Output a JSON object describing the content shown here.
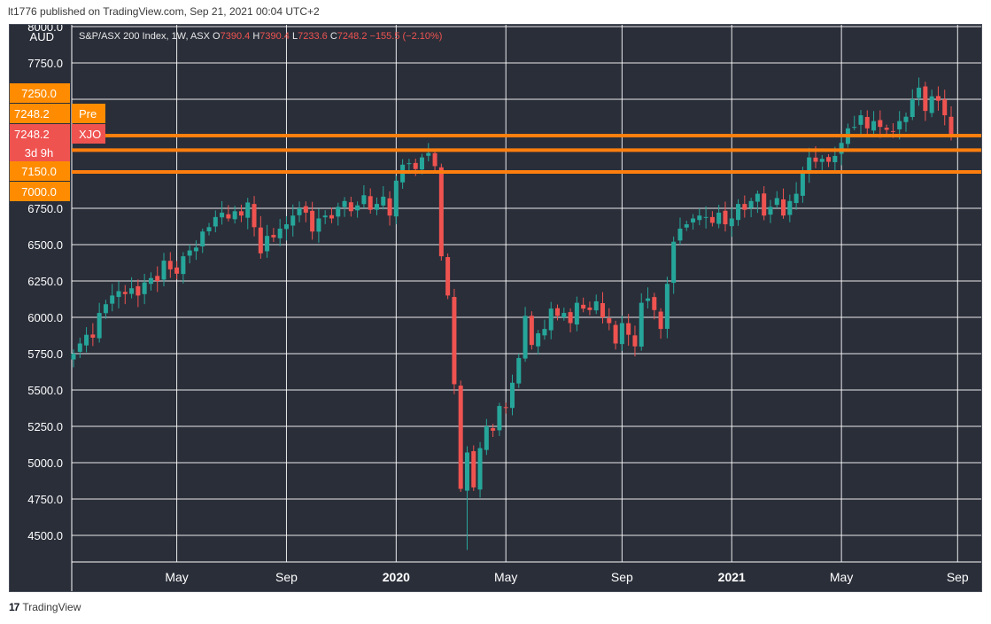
{
  "caption": "lt1776 published on TradingView.com, Sep 21, 2021 00:04 UTC+2",
  "symbol": {
    "name": "S&P/ASX 200 Index, 1W, ASX",
    "o_label": "O",
    "o_value": "7390.4",
    "h_label": "H",
    "h_value": "7390.4",
    "l_label": "L",
    "l_value": "7233.6",
    "c_label": "C",
    "c_value": "7248.2",
    "change": "−155.5 (−2.10%)"
  },
  "logo_text": "TradingView",
  "colors": {
    "background": "#2a2e39",
    "grid": "#ffffff",
    "up": "#26a69a",
    "down": "#ef5350",
    "hline": "#ff7f0e",
    "badge_orange": "#ff8c00",
    "badge_red": "#ef5350",
    "axis_text": "#ffffff"
  },
  "chart_data": {
    "type": "candlestick",
    "title": "S&P/ASX 200 Index, 1W, ASX",
    "ylabel": "AUD",
    "ylim": [
      4300,
      8050
    ],
    "y_ticks": [
      "4500.0",
      "4750.0",
      "5000.0",
      "5250.0",
      "5500.0",
      "5750.0",
      "6000.0",
      "6250.0",
      "6500.0",
      "6750.0",
      "7000.0",
      "7250.0",
      "7750.0",
      "8000.0"
    ],
    "x_ticks": [
      {
        "label": "May",
        "bold": false,
        "week": 16
      },
      {
        "label": "Sep",
        "bold": false,
        "week": 33
      },
      {
        "label": "2020",
        "bold": true,
        "week": 50
      },
      {
        "label": "May",
        "bold": false,
        "week": 67
      },
      {
        "label": "Sep",
        "bold": false,
        "week": 85
      },
      {
        "label": "2021",
        "bold": true,
        "week": 102
      },
      {
        "label": "May",
        "bold": false,
        "week": 119
      },
      {
        "label": "Sep",
        "bold": false,
        "week": 137
      }
    ],
    "horizontal_lines": [
      7250,
      7150,
      7000
    ],
    "price_badges": [
      {
        "value": "7250.0",
        "color": "orange",
        "tag": ""
      },
      {
        "value": "7248.2",
        "color": "orange",
        "tag": "Pre"
      },
      {
        "value": "7248.2",
        "color": "red",
        "tag": "XJO"
      },
      {
        "value": "3d 9h",
        "color": "red",
        "tag": ""
      },
      {
        "value": "7150.0",
        "color": "orange",
        "tag": ""
      },
      {
        "value": "7000.0",
        "color": "orange",
        "tag": ""
      }
    ],
    "weekly_closes": [
      5750,
      5820,
      5880,
      5860,
      6030,
      6090,
      6150,
      6180,
      6160,
      6200,
      6150,
      6240,
      6270,
      6250,
      6390,
      6330,
      6300,
      6420,
      6460,
      6480,
      6590,
      6620,
      6690,
      6720,
      6680,
      6730,
      6700,
      6790,
      6620,
      6440,
      6560,
      6550,
      6610,
      6640,
      6700,
      6750,
      6720,
      6590,
      6680,
      6700,
      6680,
      6760,
      6800,
      6730,
      6770,
      6840,
      6740,
      6780,
      6830,
      6700,
      6940,
      7050,
      7060,
      7020,
      7100,
      7130,
      7040,
      6420,
      6150,
      5540,
      4820,
      5070,
      4830,
      5100,
      5250,
      5220,
      5390,
      5380,
      5550,
      5720,
      6010,
      5810,
      5890,
      5920,
      6060,
      6010,
      6030,
      5960,
      6100,
      6060,
      6050,
      6110,
      6000,
      5960,
      5820,
      5960,
      5880,
      5800,
      6100,
      6130,
      6050,
      5920,
      6230,
      6520,
      6610,
      6640,
      6680,
      6700,
      6690,
      6650,
      6720,
      6640,
      6680,
      6780,
      6740,
      6800,
      6850,
      6700,
      6760,
      6820,
      6700,
      6800,
      6850,
      7000,
      7100,
      7070,
      7090,
      7070,
      7110,
      7200,
      7300,
      7310,
      7390,
      7300,
      7350,
      7310,
      7290,
      7280,
      7350,
      7380,
      7500,
      7580,
      7420,
      7520,
      7490,
      7390,
      7248
    ]
  }
}
